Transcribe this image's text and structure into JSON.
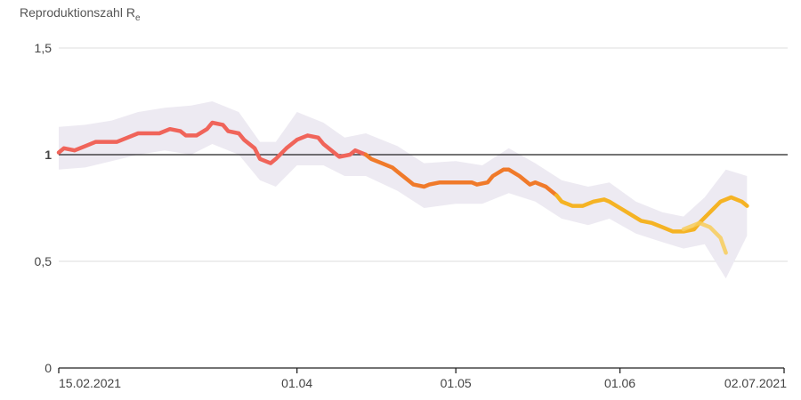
{
  "chart_data": {
    "type": "line",
    "title": "",
    "ylabel": "Reproduktionszahl R",
    "ylabel_sub": "e",
    "xlabel": "",
    "x_start": "2021-02-15",
    "x_end": "2021-07-02",
    "ylim": [
      0,
      1.5
    ],
    "yticks": [
      {
        "value": 0,
        "label": "0"
      },
      {
        "value": 0.5,
        "label": "0,5"
      },
      {
        "value": 1,
        "label": "1"
      },
      {
        "value": 1.5,
        "label": "1,5"
      }
    ],
    "reference_line": 1,
    "xticks": [
      {
        "date": "2021-02-15",
        "label": "15.02.2021"
      },
      {
        "date": "2021-04-01",
        "label": "01.04"
      },
      {
        "date": "2021-05-01",
        "label": "01.05"
      },
      {
        "date": "2021-06-01",
        "label": "01.06"
      },
      {
        "date": "2021-07-02",
        "label": "02.07.2021"
      }
    ],
    "grid": true,
    "colors": {
      "confidence_band": "#ece9f1",
      "reference_line": "#222222",
      "grid": "#dddddd",
      "segments": [
        "#f0645a",
        "#f07a2a",
        "#f5b324",
        "#f7cd5a"
      ]
    },
    "series": [
      {
        "values": [
          [
            "2021-02-15",
            1.01
          ],
          [
            "2021-02-16",
            1.03
          ],
          [
            "2021-02-18",
            1.02
          ],
          [
            "2021-02-20",
            1.04
          ],
          [
            "2021-02-22",
            1.06
          ],
          [
            "2021-02-26",
            1.06
          ],
          [
            "2021-02-28",
            1.08
          ],
          [
            "2021-03-02",
            1.1
          ],
          [
            "2021-03-06",
            1.1
          ],
          [
            "2021-03-08",
            1.12
          ],
          [
            "2021-03-10",
            1.11
          ],
          [
            "2021-03-11",
            1.09
          ],
          [
            "2021-03-13",
            1.09
          ],
          [
            "2021-03-15",
            1.12
          ],
          [
            "2021-03-16",
            1.15
          ],
          [
            "2021-03-18",
            1.14
          ],
          [
            "2021-03-19",
            1.11
          ],
          [
            "2021-03-21",
            1.1
          ],
          [
            "2021-03-22",
            1.07
          ],
          [
            "2021-03-24",
            1.03
          ],
          [
            "2021-03-25",
            0.98
          ],
          [
            "2021-03-27",
            0.96
          ],
          [
            "2021-03-28",
            0.98
          ],
          [
            "2021-03-30",
            1.03
          ],
          [
            "2021-04-01",
            1.07
          ],
          [
            "2021-04-03",
            1.09
          ],
          [
            "2021-04-05",
            1.08
          ],
          [
            "2021-04-06",
            1.05
          ],
          [
            "2021-04-08",
            1.01
          ],
          [
            "2021-04-09",
            0.99
          ],
          [
            "2021-04-11",
            1.0
          ],
          [
            "2021-04-12",
            1.02
          ],
          [
            "2021-04-14",
            1.0
          ]
        ]
      },
      {
        "values": [
          [
            "2021-04-14",
            1.0
          ],
          [
            "2021-04-15",
            0.98
          ],
          [
            "2021-04-17",
            0.96
          ],
          [
            "2021-04-19",
            0.94
          ],
          [
            "2021-04-20",
            0.92
          ],
          [
            "2021-04-22",
            0.88
          ],
          [
            "2021-04-23",
            0.86
          ],
          [
            "2021-04-25",
            0.85
          ],
          [
            "2021-04-26",
            0.86
          ],
          [
            "2021-04-28",
            0.87
          ],
          [
            "2021-04-30",
            0.87
          ],
          [
            "2021-05-02",
            0.87
          ],
          [
            "2021-05-04",
            0.87
          ],
          [
            "2021-05-05",
            0.86
          ],
          [
            "2021-05-07",
            0.87
          ],
          [
            "2021-05-08",
            0.9
          ],
          [
            "2021-05-10",
            0.93
          ],
          [
            "2021-05-11",
            0.93
          ],
          [
            "2021-05-13",
            0.9
          ],
          [
            "2021-05-15",
            0.86
          ],
          [
            "2021-05-16",
            0.87
          ],
          [
            "2021-05-18",
            0.85
          ],
          [
            "2021-05-20",
            0.81
          ]
        ]
      },
      {
        "values": [
          [
            "2021-05-20",
            0.81
          ],
          [
            "2021-05-21",
            0.78
          ],
          [
            "2021-05-23",
            0.76
          ],
          [
            "2021-05-25",
            0.76
          ],
          [
            "2021-05-27",
            0.78
          ],
          [
            "2021-05-29",
            0.79
          ],
          [
            "2021-05-30",
            0.78
          ],
          [
            "2021-06-01",
            0.75
          ],
          [
            "2021-06-03",
            0.72
          ],
          [
            "2021-06-05",
            0.69
          ],
          [
            "2021-06-07",
            0.68
          ],
          [
            "2021-06-09",
            0.66
          ],
          [
            "2021-06-11",
            0.64
          ],
          [
            "2021-06-13",
            0.64
          ],
          [
            "2021-06-15",
            0.65
          ],
          [
            "2021-06-16",
            0.68
          ],
          [
            "2021-06-18",
            0.73
          ],
          [
            "2021-06-20",
            0.78
          ],
          [
            "2021-06-22",
            0.8
          ],
          [
            "2021-06-24",
            0.78
          ],
          [
            "2021-06-25",
            0.76
          ]
        ]
      },
      {
        "values": [
          [
            "2021-06-13",
            0.65
          ],
          [
            "2021-06-15",
            0.67
          ],
          [
            "2021-06-16",
            0.68
          ],
          [
            "2021-06-18",
            0.66
          ],
          [
            "2021-06-20",
            0.61
          ],
          [
            "2021-06-21",
            0.54
          ]
        ]
      }
    ],
    "confidence_band": [
      [
        "2021-02-15",
        0.93,
        1.13
      ],
      [
        "2021-02-20",
        0.94,
        1.14
      ],
      [
        "2021-02-25",
        0.97,
        1.16
      ],
      [
        "2021-03-02",
        1.0,
        1.2
      ],
      [
        "2021-03-07",
        1.02,
        1.22
      ],
      [
        "2021-03-12",
        1.0,
        1.23
      ],
      [
        "2021-03-16",
        1.05,
        1.25
      ],
      [
        "2021-03-21",
        1.0,
        1.2
      ],
      [
        "2021-03-25",
        0.88,
        1.06
      ],
      [
        "2021-03-28",
        0.85,
        1.06
      ],
      [
        "2021-04-01",
        0.95,
        1.2
      ],
      [
        "2021-04-06",
        0.95,
        1.15
      ],
      [
        "2021-04-10",
        0.9,
        1.08
      ],
      [
        "2021-04-14",
        0.9,
        1.1
      ],
      [
        "2021-04-20",
        0.83,
        1.04
      ],
      [
        "2021-04-25",
        0.75,
        0.96
      ],
      [
        "2021-05-01",
        0.77,
        0.97
      ],
      [
        "2021-05-06",
        0.77,
        0.95
      ],
      [
        "2021-05-11",
        0.82,
        1.03
      ],
      [
        "2021-05-16",
        0.78,
        0.96
      ],
      [
        "2021-05-21",
        0.7,
        0.88
      ],
      [
        "2021-05-26",
        0.67,
        0.85
      ],
      [
        "2021-05-30",
        0.7,
        0.87
      ],
      [
        "2021-06-04",
        0.63,
        0.78
      ],
      [
        "2021-06-09",
        0.59,
        0.73
      ],
      [
        "2021-06-13",
        0.56,
        0.71
      ],
      [
        "2021-06-17",
        0.58,
        0.8
      ],
      [
        "2021-06-21",
        0.42,
        0.93
      ],
      [
        "2021-06-25",
        0.62,
        0.9
      ]
    ]
  }
}
